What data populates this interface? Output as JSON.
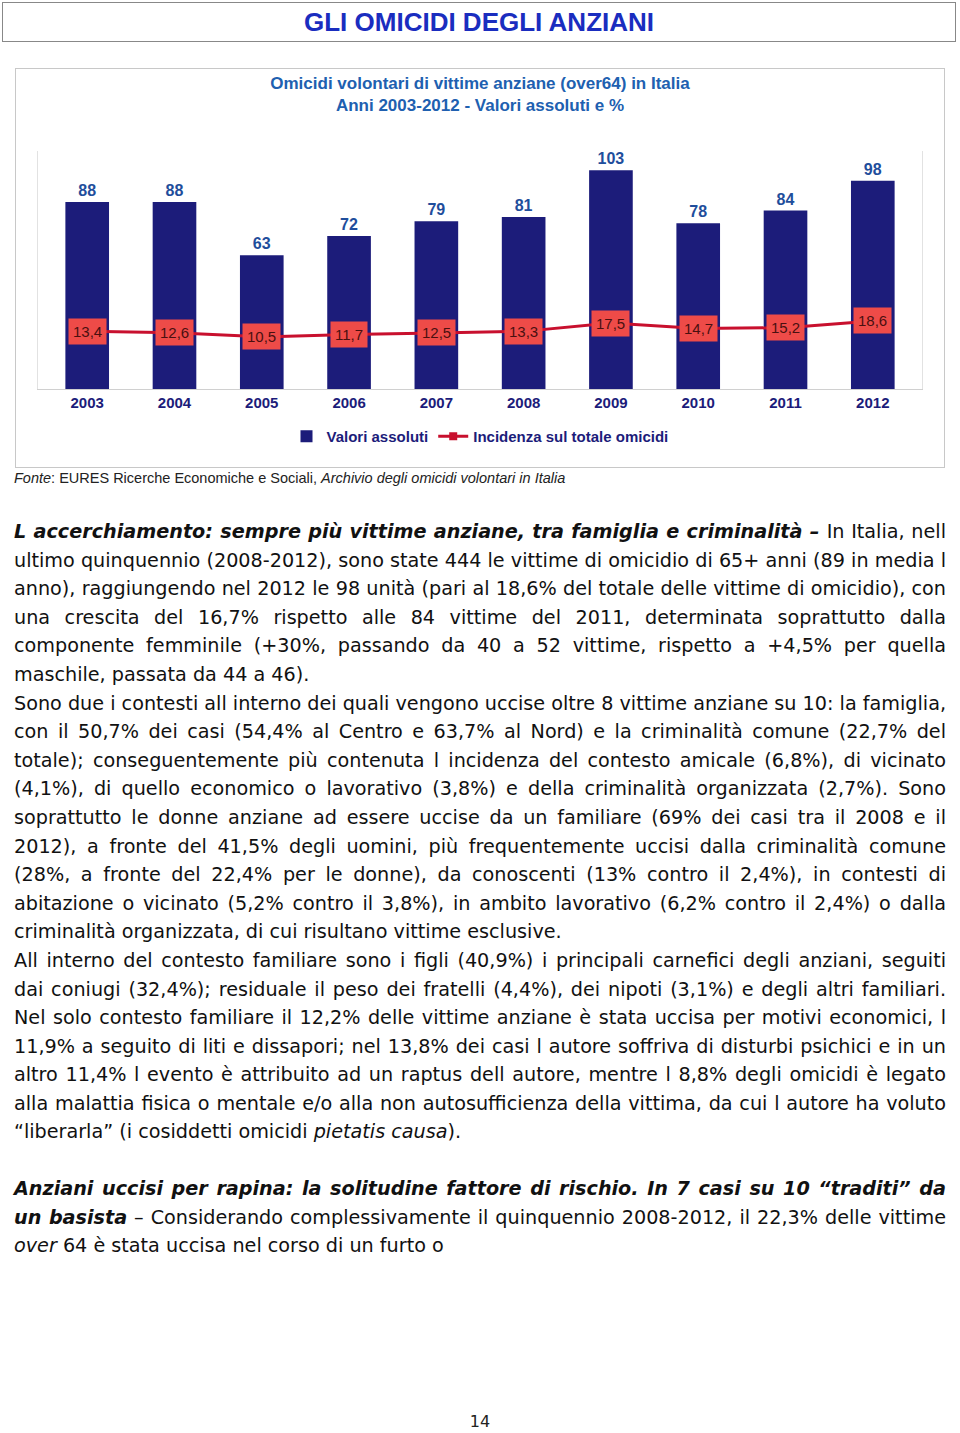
{
  "header": {
    "title": "GLI OMICIDI DEGLI ANZIANI"
  },
  "chart_data": {
    "type": "bar",
    "title": [
      "Omicidi volontari di vittime anziane (over64) in Italia",
      "Anni 2003-2012 - Valori assoluti e %"
    ],
    "categories": [
      "2003",
      "2004",
      "2005",
      "2006",
      "2007",
      "2008",
      "2009",
      "2010",
      "2011",
      "2012"
    ],
    "series": [
      {
        "name": "Valori assoluti",
        "type": "bar",
        "color": "#1c1c7a",
        "values": [
          88,
          88,
          63,
          72,
          79,
          81,
          103,
          78,
          84,
          98
        ],
        "data_labels": true
      },
      {
        "name": "Incidenza sul totale omicidi",
        "type": "line",
        "axis": "y2",
        "color": "#c8102e",
        "marker": "square",
        "values": [
          13.4,
          12.6,
          10.5,
          11.7,
          12.5,
          13.3,
          17.5,
          14.7,
          15.2,
          18.6
        ],
        "value_labels": [
          "13,4",
          "12,6",
          "10,5",
          "11,7",
          "12,5",
          "13,3",
          "17,5",
          "14,7",
          "15,2",
          "18,6"
        ],
        "data_labels": true
      }
    ],
    "ylim": [
      0,
      112
    ],
    "y2lim": [
      -16,
      105
    ],
    "tick_labels": "x",
    "legend": "bottom",
    "grid": false
  },
  "source": [
    {
      "text": "Fonte",
      "style": "i"
    },
    {
      "text": ": EURES Ricerche Economiche e Sociali, ",
      "style": "n"
    },
    {
      "text": "Archivio degli omicidi volontari in Italia",
      "style": "i"
    }
  ],
  "paragraphs": [
    [
      {
        "text": "L accerchiamento: sempre più vittime anziane, tra famiglia e criminalità – ",
        "style": "bi"
      },
      {
        "text": "In Italia, nell ultimo quinquennio (2008-2012), sono state 444 le vittime di omicidio di 65+ anni (89 in media l anno), raggiungendo nel 2012 le 98 unità (pari al 18,6% del totale delle vittime di omicidio), con una crescita del 16,7% rispetto alle 84 vittime del 2011, determinata soprattutto dalla componente femminile (+30%, passando da 40 a 52 vittime, rispetto a +4,5% per quella maschile, passata da 44 a 46).",
        "style": "n"
      }
    ],
    [
      {
        "text": "Sono due i contesti all interno dei quali vengono uccise oltre 8 vittime anziane su 10: la famiglia, con il 50,7% dei casi (54,4% al Centro e 63,7% al Nord) e la criminalità comune (22,7% del totale); conseguentemente più contenuta l incidenza del contesto amicale (6,8%), di vicinato (4,1%), di quello economico o lavorativo (3,8%) e della criminalità organizzata (2,7%). Sono soprattutto le donne anziane ad essere uccise da un familiare (69% dei casi tra il 2008 e il 2012), a fronte del 41,5% degli uomini, più frequentemente uccisi dalla criminalità comune (28%, a fronte del 22,4% per le donne), da conoscenti (13% contro il 2,4%), in contesti di abitazione o vicinato (5,2% contro il 3,8%), in ambito lavorativo (6,2% contro il 2,4%) o dalla criminalità organizzata, di cui risultano vittime esclusive.",
        "style": "n"
      }
    ],
    [
      {
        "text": "All interno del contesto familiare sono i figli (40,9%) i principali carnefici degli anziani, seguiti dai coniugi (32,4%); residuale il peso dei fratelli (4,4%), dei nipoti (3,1%) e degli altri familiari. Nel solo contesto familiare il 12,2% delle vittime anziane è stata uccisa per motivi economici, l 11,9% a seguito di liti e dissapori; nel 13,8% dei casi l autore soffriva di disturbi psichici e in un altro 11,4% l evento è attribuito ad un raptus dell autore, mentre l 8,8% degli omicidi è legato alla malattia fisica o mentale e/o alla non autosufficienza della vittima, da cui l autore ha voluto “liberarla” (i cosiddetti omicidi ",
        "style": "n"
      },
      {
        "text": "pietatis causa",
        "style": "i"
      },
      {
        "text": ").",
        "style": "n"
      }
    ],
    [
      {
        "text": "Anziani uccisi per rapina: la solitudine fattore di rischio. In 7 casi su 10 “traditi” da un basista",
        "style": "bi"
      },
      {
        "text": " – Considerando complessivamente il quinquennio 2008-2012, il 22,3% delle vittime ",
        "style": "n"
      },
      {
        "text": "over",
        "style": "i"
      },
      {
        "text": " 64 è stata uccisa nel corso di un furto o",
        "style": "n"
      }
    ]
  ],
  "page_number": 14
}
